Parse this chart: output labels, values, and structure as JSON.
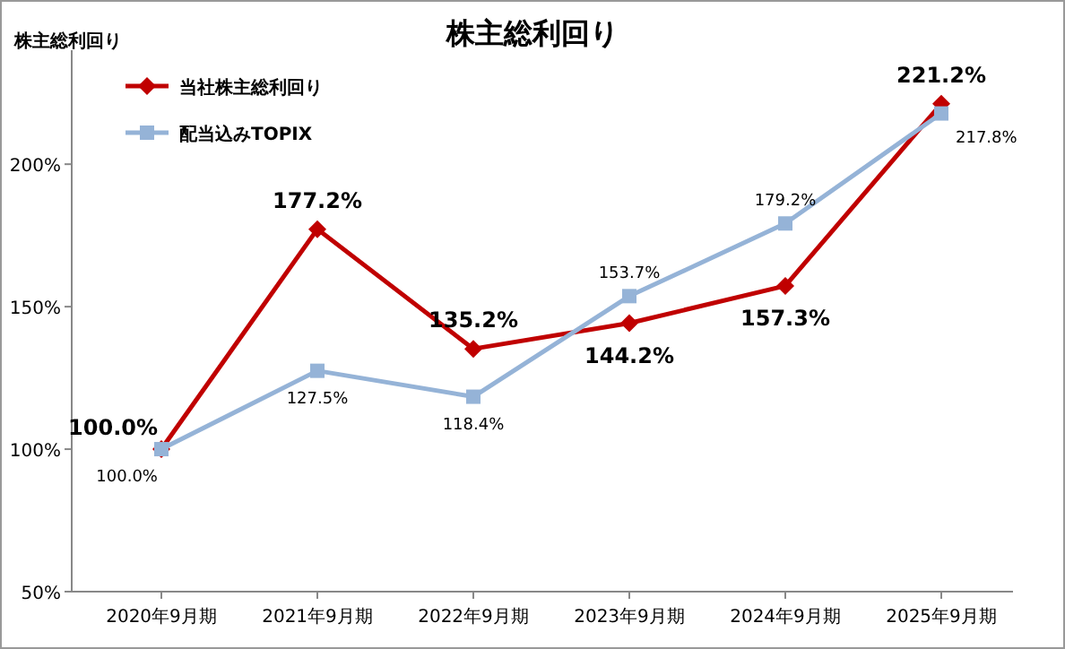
{
  "chart_data": {
    "type": "line",
    "title": "株主総利回り",
    "ylabel": "株主総利回り",
    "categories": [
      "2020年9月期",
      "2021年9月期",
      "2022年9月期",
      "2023年9月期",
      "2024年9月期",
      "2025年9月期"
    ],
    "series": [
      {
        "name": "当社株主総利回り",
        "color": "#c00000",
        "marker": "diamond",
        "values": [
          100.0,
          177.2,
          135.2,
          144.2,
          157.3,
          221.2
        ],
        "value_labels": [
          "100.0%",
          "177.2%",
          "135.2%",
          "144.2%",
          "157.3%",
          "221.2%"
        ]
      },
      {
        "name": "配当込みTOPIX",
        "color": "#95b3d7",
        "marker": "square",
        "values": [
          100.0,
          127.5,
          118.4,
          153.7,
          179.2,
          217.8
        ],
        "value_labels": [
          "100.0%",
          "127.5%",
          "118.4%",
          "153.7%",
          "179.2%",
          "217.8%"
        ]
      }
    ],
    "ylim": [
      50,
      240
    ],
    "yticks": [
      {
        "value": 50,
        "label": "50%"
      },
      {
        "value": 100,
        "label": "100%"
      },
      {
        "value": 150,
        "label": "150%"
      },
      {
        "value": 200,
        "label": "200%"
      }
    ],
    "grid": false,
    "legend": "top left",
    "line_style": "solid"
  }
}
